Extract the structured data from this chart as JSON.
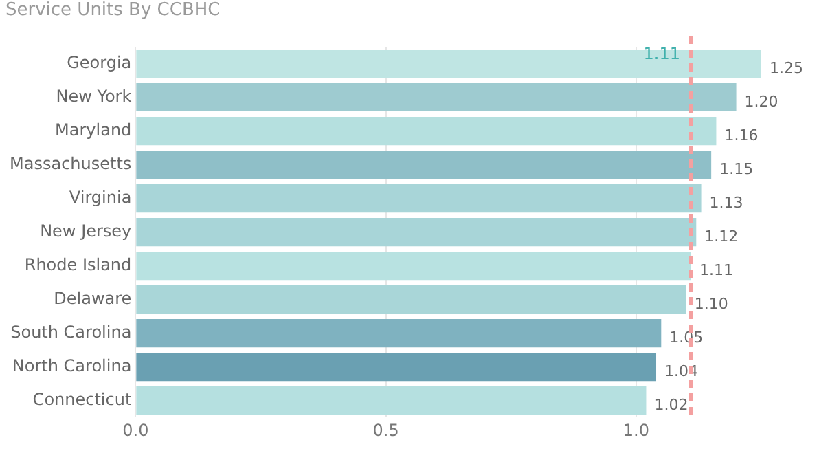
{
  "chart_data": {
    "type": "bar",
    "orientation": "horizontal",
    "title": "Service Units By CCBHC",
    "categories": [
      "Georgia",
      "New York",
      "Maryland",
      "Massachusetts",
      "Virginia",
      "New Jersey",
      "Rhode Island",
      "Delaware",
      "South Carolina",
      "North Carolina",
      "Connecticut"
    ],
    "values": [
      1.25,
      1.2,
      1.16,
      1.15,
      1.13,
      1.12,
      1.11,
      1.1,
      1.05,
      1.04,
      1.02
    ],
    "colors": [
      "#bfe5e3",
      "#9ecbd0",
      "#b5e0df",
      "#8fbfc8",
      "#a8d5d8",
      "#a8d5d8",
      "#b8e2e1",
      "#a9d6d8",
      "#7fb2c0",
      "#6aa0b2",
      "#b5e0e0"
    ],
    "value_labels": [
      "1.25",
      "1.20",
      "1.16",
      "1.15",
      "1.13",
      "1.12",
      "1.11",
      "1.10",
      "1.05",
      "1.04",
      "1.02"
    ],
    "xlim": [
      0,
      1.25
    ],
    "xticks": [
      {
        "value": 0,
        "label": "0.0"
      },
      0.5,
      {
        "value": 1,
        "label": "1.0"
      }
    ],
    "grid": "x",
    "legend": false,
    "ref_lines": [
      {
        "axis": "x",
        "value": 1.11,
        "label": "1.11",
        "color": "#f4a0a0",
        "line_style": "dashed"
      }
    ]
  }
}
